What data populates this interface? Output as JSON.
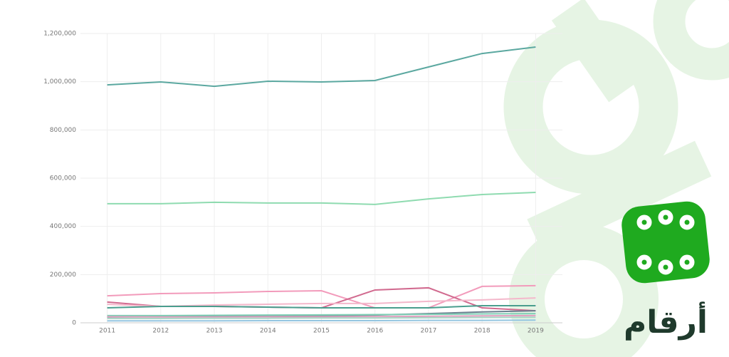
{
  "chart_data": {
    "type": "line",
    "x": [
      2011,
      2012,
      2013,
      2014,
      2015,
      2016,
      2017,
      2018,
      2019
    ],
    "xlim": [
      2010.5,
      2019.5
    ],
    "ylim": [
      0,
      1200000
    ],
    "yticks": [
      0,
      {
        "value": 200000,
        "label": "200,000"
      },
      {
        "value": 400000,
        "label": "400,000"
      },
      {
        "value": 600000,
        "label": "600,000"
      },
      {
        "value": 800000,
        "label": "800,000"
      },
      {
        "value": 1000000,
        "label": "1,000,000"
      },
      {
        "value": 1200000,
        "label": "1,200,000"
      }
    ],
    "grid": true,
    "series": [
      {
        "color": "#5ba8a0",
        "values": [
          987000,
          999000,
          981000,
          1002000,
          999000,
          1005000,
          1061000,
          1117000,
          1144000
        ]
      },
      {
        "color": "#8fdbb0",
        "values": [
          494000,
          494000,
          500000,
          497000,
          497000,
          491000,
          514000,
          532000,
          541000
        ]
      },
      {
        "color": "#f29bbb",
        "values": [
          112000,
          121000,
          124000,
          130000,
          133000,
          62000,
          62000,
          151000,
          154000
        ]
      },
      {
        "color": "#d16a8f",
        "values": [
          86000,
          68000,
          68000,
          65000,
          62000,
          136000,
          145000,
          62000,
          50000
        ]
      },
      {
        "color": "#f4b8cb",
        "values": [
          77000,
          68000,
          74000,
          77000,
          80000,
          80000,
          89000,
          95000,
          103000
        ]
      },
      {
        "color": "#4a9e8e",
        "values": [
          62000,
          68000,
          68000,
          65000,
          62000,
          62000,
          62000,
          71000,
          71000
        ]
      },
      {
        "color": "#6b7f8f",
        "values": [
          24000,
          25000,
          26000,
          28000,
          30000,
          32000,
          38000,
          45000,
          50000
        ]
      },
      {
        "color": "#7fcfb5",
        "values": [
          30000,
          30000,
          31000,
          32000,
          33000,
          34000,
          35000,
          37000,
          38000
        ]
      },
      {
        "color": "#e0a0c0",
        "values": [
          25000,
          24000,
          24000,
          25000,
          25000,
          26000,
          27000,
          29000,
          30000
        ]
      },
      {
        "color": "#a8d5c4",
        "values": [
          18000,
          18000,
          19000,
          19000,
          20000,
          20000,
          21000,
          22000,
          23000
        ]
      },
      {
        "color": "#93c5e0",
        "values": [
          8000,
          8000,
          8000,
          9000,
          9000,
          9000,
          10000,
          10000,
          11000
        ]
      }
    ]
  },
  "brand": {
    "name": "أرقام"
  }
}
